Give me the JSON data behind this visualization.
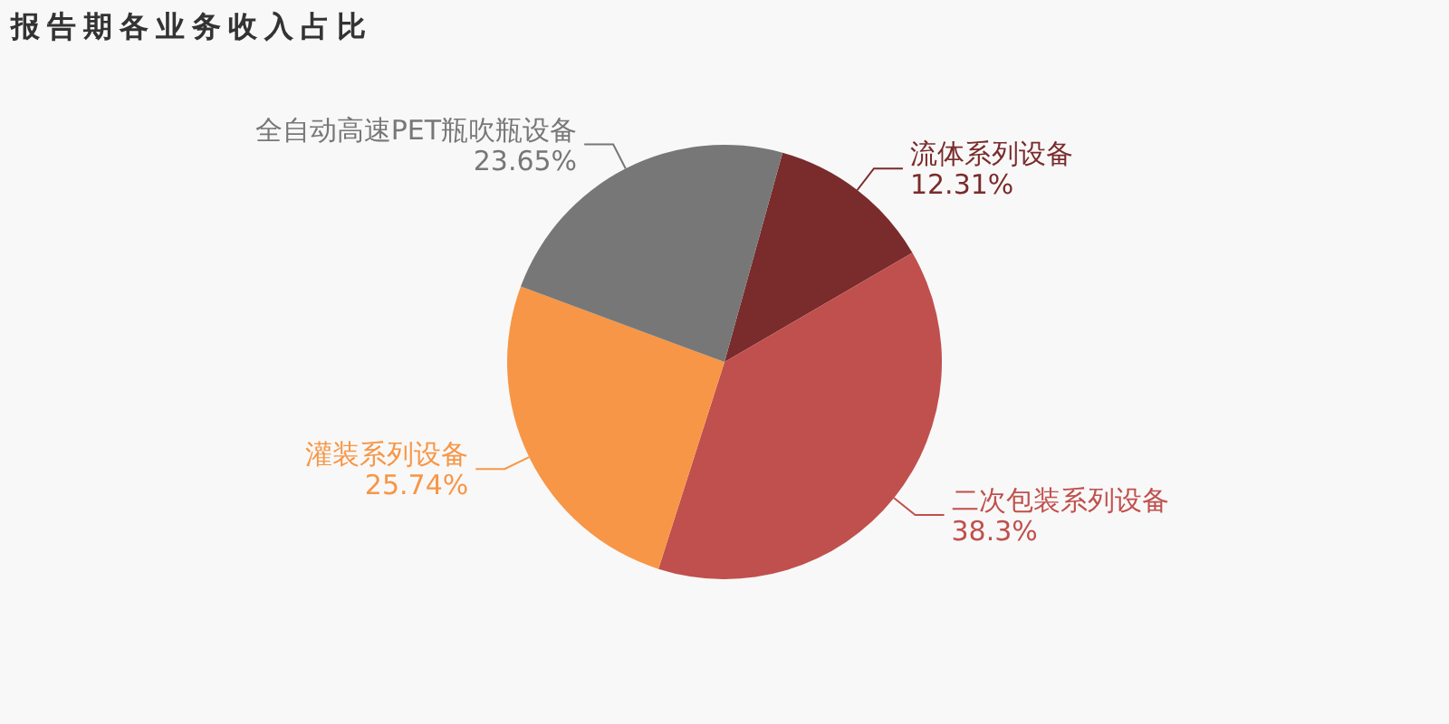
{
  "chart_data": {
    "type": "pie",
    "title": "报告期各业务收入占比",
    "categories": [
      "流体系列设备",
      "二次包装系列设备",
      "灌装系列设备",
      "全自动高速PET瓶吹瓶设备"
    ],
    "values": [
      12.31,
      38.3,
      25.74,
      23.65
    ],
    "colors": [
      "#7a2b2b",
      "#c0504d",
      "#f79646",
      "#777777"
    ],
    "value_labels": [
      "12.31%",
      "38.3%",
      "25.74%",
      "23.65%"
    ]
  }
}
